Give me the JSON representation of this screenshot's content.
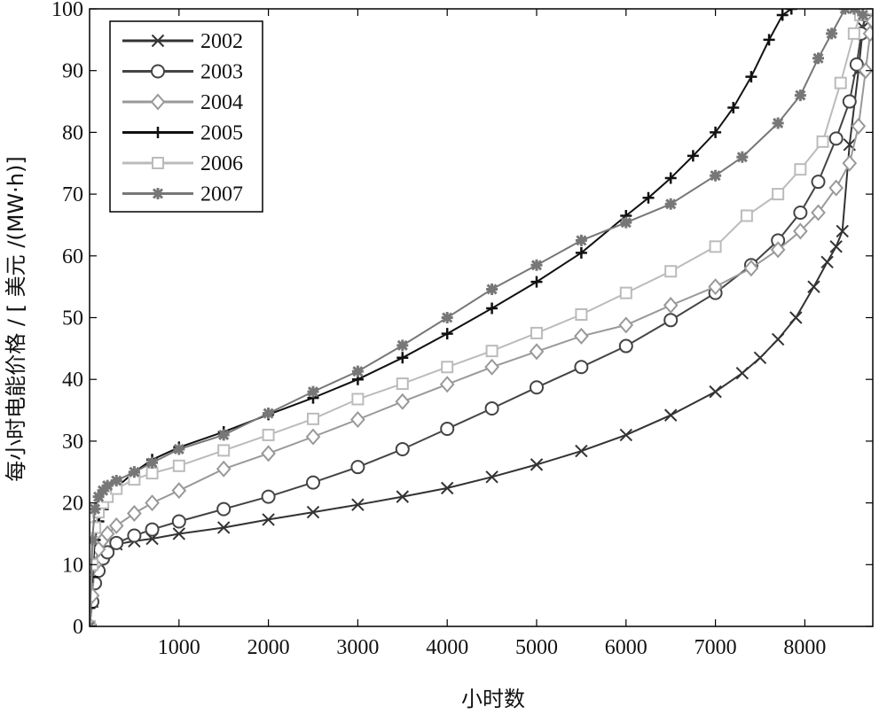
{
  "chart_data": {
    "type": "line",
    "title": "",
    "xlabel": "小时数",
    "ylabel": "每小时电能价格 / [ 美元 /(MW·h)]",
    "xlim": [
      0,
      8760
    ],
    "ylim": [
      0,
      100
    ],
    "xticks": [
      1000,
      2000,
      3000,
      4000,
      5000,
      6000,
      7000,
      8000
    ],
    "yticks": [
      0,
      10,
      20,
      30,
      40,
      50,
      60,
      70,
      80,
      90,
      100
    ],
    "xtick_labels": [
      "1000",
      "2000",
      "3000",
      "4000",
      "5000",
      "6000",
      "7000",
      "8000"
    ],
    "ytick_labels": [
      "0",
      "10",
      "20",
      "30",
      "40",
      "50",
      "60",
      "70",
      "80",
      "90",
      "100"
    ],
    "grid": false,
    "legend_position": "top-left",
    "series": [
      {
        "name": "2002",
        "marker": "x",
        "color": "#333333",
        "x": [
          0,
          30,
          60,
          100,
          150,
          200,
          300,
          500,
          700,
          1000,
          1500,
          2000,
          2500,
          3000,
          3500,
          4000,
          4500,
          5000,
          5500,
          6000,
          6500,
          7000,
          7300,
          7500,
          7700,
          7900,
          8100,
          8250,
          8350,
          8420,
          8500,
          8600,
          8650,
          8700
        ],
        "y": [
          0,
          4,
          8,
          10,
          11.5,
          12.5,
          13.3,
          13.8,
          14.2,
          15,
          16,
          17.3,
          18.5,
          19.7,
          21,
          22.4,
          24.2,
          26.2,
          28.4,
          31,
          34.2,
          38,
          41,
          43.5,
          46.5,
          50,
          55,
          59,
          61.5,
          64,
          78,
          90,
          97,
          100
        ]
      },
      {
        "name": "2003",
        "marker": "circle",
        "color": "#444444",
        "x": [
          0,
          30,
          60,
          100,
          150,
          200,
          300,
          500,
          700,
          1000,
          1500,
          2000,
          2500,
          3000,
          3500,
          4000,
          4500,
          5000,
          5500,
          6000,
          6500,
          7000,
          7400,
          7700,
          7950,
          8150,
          8350,
          8500,
          8580,
          8630,
          8680,
          8720
        ],
        "y": [
          0,
          4,
          7,
          9,
          11,
          12,
          13.5,
          14.7,
          15.7,
          17,
          19,
          21,
          23.3,
          25.8,
          28.7,
          32,
          35.3,
          38.7,
          42,
          45.4,
          49.6,
          54,
          58.5,
          62.5,
          67,
          72,
          79,
          85,
          91,
          96,
          99,
          100
        ]
      },
      {
        "name": "2004",
        "marker": "diamond",
        "color": "#999999",
        "x": [
          0,
          30,
          60,
          100,
          150,
          200,
          300,
          500,
          700,
          1000,
          1500,
          2000,
          2500,
          3000,
          3500,
          4000,
          4500,
          5000,
          5500,
          6000,
          6500,
          7000,
          7400,
          7700,
          7950,
          8150,
          8350,
          8500,
          8600,
          8680,
          8730,
          8760
        ],
        "y": [
          0,
          5,
          10,
          12.5,
          14,
          15,
          16.3,
          18.3,
          20,
          22,
          25.5,
          28,
          30.7,
          33.5,
          36.4,
          39.2,
          42,
          44.5,
          47,
          48.8,
          52,
          55,
          58,
          61,
          64,
          67,
          71,
          75,
          81,
          90,
          96,
          98
        ]
      },
      {
        "name": "2005",
        "marker": "plus",
        "color": "#111111",
        "x": [
          0,
          30,
          60,
          100,
          150,
          200,
          300,
          500,
          700,
          1000,
          1500,
          2000,
          2500,
          3000,
          3500,
          4000,
          4500,
          5000,
          5500,
          6000,
          6250,
          6500,
          6750,
          7000,
          7200,
          7400,
          7600,
          7750,
          7850
        ],
        "y": [
          3,
          8,
          14,
          17,
          19,
          20.5,
          22.5,
          25,
          27,
          29,
          31.5,
          34.3,
          37,
          40,
          43.5,
          47.4,
          51.5,
          55.8,
          60.5,
          66.5,
          69.4,
          72.6,
          76.2,
          80,
          84,
          89,
          95,
          99,
          100
        ]
      },
      {
        "name": "2006",
        "marker": "square",
        "color": "#bbbbbb",
        "x": [
          0,
          30,
          60,
          100,
          150,
          200,
          300,
          500,
          700,
          1000,
          1500,
          2000,
          2500,
          3000,
          3500,
          4000,
          4500,
          5000,
          5500,
          6000,
          6500,
          7000,
          7350,
          7700,
          7950,
          8200,
          8400,
          8550,
          8620,
          8660,
          8700
        ],
        "y": [
          0,
          10,
          16,
          18.5,
          20,
          21,
          22.3,
          23.8,
          24.8,
          26,
          28.5,
          31,
          33.6,
          36.8,
          39.3,
          42,
          44.6,
          47.5,
          50.5,
          54,
          57.5,
          61.5,
          66.5,
          70,
          74,
          78.5,
          88,
          96,
          99,
          100,
          100
        ]
      },
      {
        "name": "2007",
        "marker": "asterisk",
        "color": "#777777",
        "x": [
          0,
          30,
          60,
          100,
          150,
          200,
          300,
          500,
          700,
          1000,
          1500,
          2000,
          2500,
          3000,
          3500,
          4000,
          4500,
          5000,
          5500,
          6000,
          6500,
          7000,
          7300,
          7700,
          7950,
          8150,
          8300,
          8450,
          8550,
          8650
        ],
        "y": [
          0,
          14,
          19,
          21,
          22,
          22.8,
          23.6,
          25,
          26.5,
          28.7,
          31,
          34.5,
          38,
          41.3,
          45.5,
          50,
          54.6,
          58.5,
          62.5,
          65.4,
          68.4,
          73,
          76,
          81.5,
          86,
          92,
          96,
          100,
          100,
          99
        ]
      }
    ]
  }
}
